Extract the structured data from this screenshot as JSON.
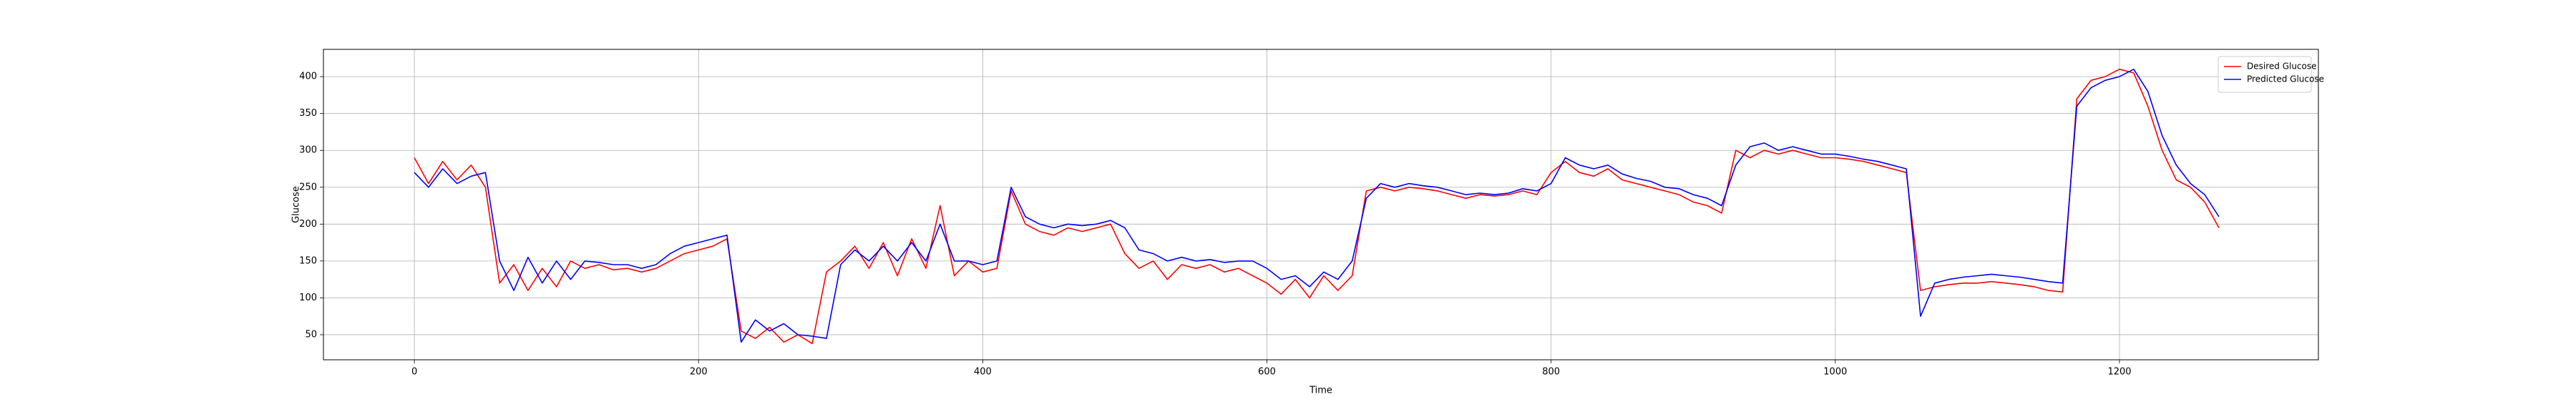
{
  "chart_data": {
    "type": "line",
    "xlabel": "Time",
    "ylabel": "Glucose",
    "x": [
      0,
      10,
      20,
      30,
      40,
      50,
      60,
      70,
      80,
      90,
      100,
      110,
      120,
      130,
      140,
      150,
      160,
      170,
      180,
      190,
      200,
      210,
      220,
      230,
      240,
      250,
      260,
      270,
      280,
      290,
      300,
      310,
      320,
      330,
      340,
      350,
      360,
      370,
      380,
      390,
      400,
      410,
      420,
      430,
      440,
      450,
      460,
      470,
      480,
      490,
      500,
      510,
      520,
      530,
      540,
      550,
      560,
      570,
      580,
      590,
      600,
      610,
      620,
      630,
      640,
      650,
      660,
      670,
      680,
      690,
      700,
      710,
      720,
      730,
      740,
      750,
      760,
      770,
      780,
      790,
      800,
      810,
      820,
      830,
      840,
      850,
      860,
      870,
      880,
      890,
      900,
      910,
      920,
      930,
      940,
      950,
      960,
      970,
      980,
      990,
      1000,
      1010,
      1020,
      1030,
      1040,
      1050,
      1060,
      1070,
      1080,
      1090,
      1100,
      1110,
      1120,
      1130,
      1140,
      1150,
      1160,
      1170,
      1180,
      1190,
      1200,
      1210,
      1220,
      1230,
      1240,
      1250,
      1260,
      1270
    ],
    "series": [
      {
        "name": "Desired Glucose",
        "color": "#ff0000",
        "values": [
          290,
          255,
          285,
          260,
          280,
          250,
          120,
          145,
          110,
          140,
          115,
          150,
          140,
          145,
          138,
          140,
          135,
          140,
          150,
          160,
          165,
          170,
          180,
          55,
          45,
          60,
          40,
          50,
          38,
          135,
          150,
          170,
          140,
          175,
          130,
          180,
          140,
          225,
          130,
          150,
          135,
          140,
          245,
          200,
          190,
          185,
          195,
          190,
          195,
          200,
          160,
          140,
          150,
          125,
          145,
          140,
          145,
          135,
          140,
          130,
          120,
          105,
          125,
          100,
          130,
          110,
          130,
          245,
          250,
          245,
          250,
          248,
          245,
          240,
          235,
          240,
          238,
          240,
          245,
          240,
          270,
          285,
          270,
          265,
          275,
          260,
          255,
          250,
          245,
          240,
          230,
          225,
          215,
          300,
          290,
          300,
          295,
          300,
          295,
          290,
          290,
          288,
          285,
          280,
          275,
          270,
          110,
          115,
          118,
          120,
          120,
          122,
          120,
          118,
          115,
          110,
          108,
          370,
          395,
          400,
          410,
          405,
          360,
          300,
          260,
          250,
          230,
          195
        ]
      },
      {
        "name": "Predicted Glucose",
        "color": "#0000ff",
        "values": [
          270,
          250,
          275,
          255,
          265,
          270,
          150,
          110,
          155,
          120,
          150,
          125,
          150,
          148,
          145,
          145,
          140,
          145,
          160,
          170,
          175,
          180,
          185,
          40,
          70,
          55,
          65,
          50,
          48,
          45,
          145,
          165,
          150,
          170,
          150,
          175,
          150,
          200,
          150,
          150,
          145,
          150,
          250,
          210,
          200,
          195,
          200,
          198,
          200,
          205,
          195,
          165,
          160,
          150,
          155,
          150,
          152,
          148,
          150,
          150,
          140,
          125,
          130,
          115,
          135,
          125,
          150,
          235,
          255,
          250,
          255,
          252,
          250,
          245,
          240,
          242,
          240,
          242,
          248,
          245,
          255,
          290,
          280,
          275,
          280,
          268,
          262,
          258,
          250,
          248,
          240,
          235,
          225,
          280,
          305,
          310,
          300,
          305,
          300,
          295,
          295,
          292,
          288,
          285,
          280,
          275,
          75,
          120,
          125,
          128,
          130,
          132,
          130,
          128,
          125,
          122,
          120,
          360,
          385,
          395,
          400,
          410,
          380,
          320,
          280,
          255,
          240,
          210
        ]
      }
    ],
    "xlim": [
      -64,
      1340
    ],
    "xticks": [
      0,
      200,
      400,
      600,
      800,
      1000,
      1200
    ],
    "ylim": [
      16,
      437
    ],
    "yticks": [
      50,
      100,
      150,
      200,
      250,
      300,
      350,
      400
    ],
    "grid": true,
    "legend": "upper right"
  }
}
